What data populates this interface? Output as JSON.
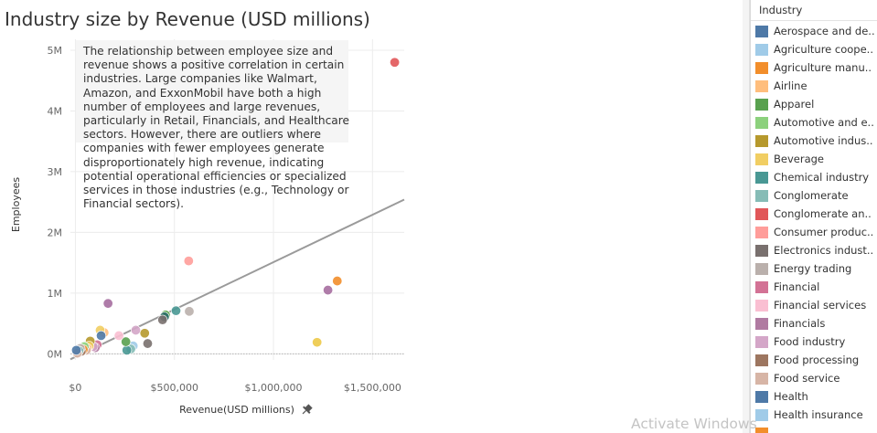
{
  "chart_data": {
    "type": "scatter",
    "title": "Industry size by Revenue (USD millions)",
    "xlabel": "Revenue(USD millions)",
    "ylabel": "Employees",
    "xlim": [
      -25000,
      1660000
    ],
    "ylim": [
      -100000,
      5180000
    ],
    "x_ticks": [
      0,
      500000,
      1000000,
      1500000
    ],
    "x_tick_labels": [
      "$0",
      "$500,000",
      "$1,000,000",
      "$1,500,000"
    ],
    "y_ticks": [
      0,
      1000000,
      2000000,
      3000000,
      4000000,
      5000000
    ],
    "y_tick_labels": [
      "0M",
      "1M",
      "2M",
      "3M",
      "4M",
      "5M"
    ],
    "grid": true,
    "trend_line": {
      "x": [
        -25000,
        1660000
      ],
      "y": [
        -90000,
        2540000
      ]
    },
    "annotation": "The relationship between employee size and revenue shows a positive correlation in certain industries. Large companies like Walmart, Amazon, and ExxonMobil have both a high number of employees and large revenues, particularly in Retail, Financials, and Healthcare sectors. However, there are outliers where companies with fewer employees generate disproportionately high revenue, indicating potential operational efficiencies or specialized services in those industries (e.g., Technology or Financial sectors).",
    "points": [
      {
        "x": 1612000,
        "y": 4800000,
        "color": "#E15759"
      },
      {
        "x": 1322000,
        "y": 1200000,
        "color": "#F28E2B"
      },
      {
        "x": 1275000,
        "y": 1050000,
        "color": "#A66EA0"
      },
      {
        "x": 1220000,
        "y": 190000,
        "color": "#EDC948"
      },
      {
        "x": 572000,
        "y": 1530000,
        "color": "#FF9D9A"
      },
      {
        "x": 575000,
        "y": 700000,
        "color": "#BAB0AC"
      },
      {
        "x": 508000,
        "y": 710000,
        "color": "#499894"
      },
      {
        "x": 455000,
        "y": 640000,
        "color": "#4E9F3D"
      },
      {
        "x": 450000,
        "y": 610000,
        "color": "#2E6E6A"
      },
      {
        "x": 440000,
        "y": 560000,
        "color": "#79706E"
      },
      {
        "x": 365000,
        "y": 170000,
        "color": "#79706E"
      },
      {
        "x": 350000,
        "y": 340000,
        "color": "#B6992D"
      },
      {
        "x": 305000,
        "y": 390000,
        "color": "#D4A6C8"
      },
      {
        "x": 292000,
        "y": 130000,
        "color": "#A0CBE8"
      },
      {
        "x": 280000,
        "y": 80000,
        "color": "#86BCB6"
      },
      {
        "x": 260000,
        "y": 60000,
        "color": "#499894"
      },
      {
        "x": 255000,
        "y": 200000,
        "color": "#59A14F"
      },
      {
        "x": 220000,
        "y": 300000,
        "color": "#FABFD2"
      },
      {
        "x": 165000,
        "y": 830000,
        "color": "#A66EA0"
      },
      {
        "x": 145000,
        "y": 350000,
        "color": "#FFBE7D"
      },
      {
        "x": 125000,
        "y": 390000,
        "color": "#F1CE63"
      },
      {
        "x": 130000,
        "y": 300000,
        "color": "#4E79A7"
      },
      {
        "x": 110000,
        "y": 150000,
        "color": "#D37295"
      },
      {
        "x": 100000,
        "y": 100000,
        "color": "#B07AA1"
      },
      {
        "x": 90000,
        "y": 120000,
        "color": "#D4A6C8"
      },
      {
        "x": 75000,
        "y": 210000,
        "color": "#B6992D"
      },
      {
        "x": 70000,
        "y": 130000,
        "color": "#F1CE63"
      },
      {
        "x": 60000,
        "y": 90000,
        "color": "#FFBE7D"
      },
      {
        "x": 55000,
        "y": 60000,
        "color": "#D7B5A6"
      },
      {
        "x": 45000,
        "y": 120000,
        "color": "#8CD17D"
      },
      {
        "x": 40000,
        "y": 70000,
        "color": "#F28E2B"
      },
      {
        "x": 30000,
        "y": 40000,
        "color": "#9D7660"
      },
      {
        "x": 25000,
        "y": 90000,
        "color": "#BAB0AC"
      },
      {
        "x": 18000,
        "y": 50000,
        "color": "#86BCB6"
      },
      {
        "x": 10000,
        "y": 10000,
        "color": "#D7B5A6"
      },
      {
        "x": 5000,
        "y": 60000,
        "color": "#4E79A7"
      }
    ]
  },
  "legend": {
    "title": "Industry",
    "items": [
      {
        "label": "Aerospace and de..",
        "color": "#4E79A7"
      },
      {
        "label": "Agriculture coope..",
        "color": "#A0CBE8"
      },
      {
        "label": "Agriculture manu..",
        "color": "#F28E2B"
      },
      {
        "label": "Airline",
        "color": "#FFBE7D"
      },
      {
        "label": "Apparel",
        "color": "#59A14F"
      },
      {
        "label": "Automotive and e..",
        "color": "#8CD17D"
      },
      {
        "label": "Automotive indus..",
        "color": "#B6992D"
      },
      {
        "label": "Beverage",
        "color": "#F1CE63"
      },
      {
        "label": "Chemical industry",
        "color": "#499894"
      },
      {
        "label": "Conglomerate",
        "color": "#86BCB6"
      },
      {
        "label": "Conglomerate an..",
        "color": "#E15759"
      },
      {
        "label": "Consumer produc..",
        "color": "#FF9D9A"
      },
      {
        "label": "Electronics indust..",
        "color": "#79706E"
      },
      {
        "label": "Energy trading",
        "color": "#BAB0AC"
      },
      {
        "label": "Financial",
        "color": "#D37295"
      },
      {
        "label": "Financial services",
        "color": "#FABFD2"
      },
      {
        "label": "Financials",
        "color": "#B07AA1"
      },
      {
        "label": "Food industry",
        "color": "#D4A6C8"
      },
      {
        "label": "Food processing",
        "color": "#9D7660"
      },
      {
        "label": "Food service",
        "color": "#D7B5A6"
      },
      {
        "label": "Health",
        "color": "#4E79A7"
      },
      {
        "label": "Health insurance",
        "color": "#A0CBE8"
      },
      {
        "label": "",
        "color": "#F28E2B"
      }
    ]
  },
  "watermark": "Activate Windows"
}
